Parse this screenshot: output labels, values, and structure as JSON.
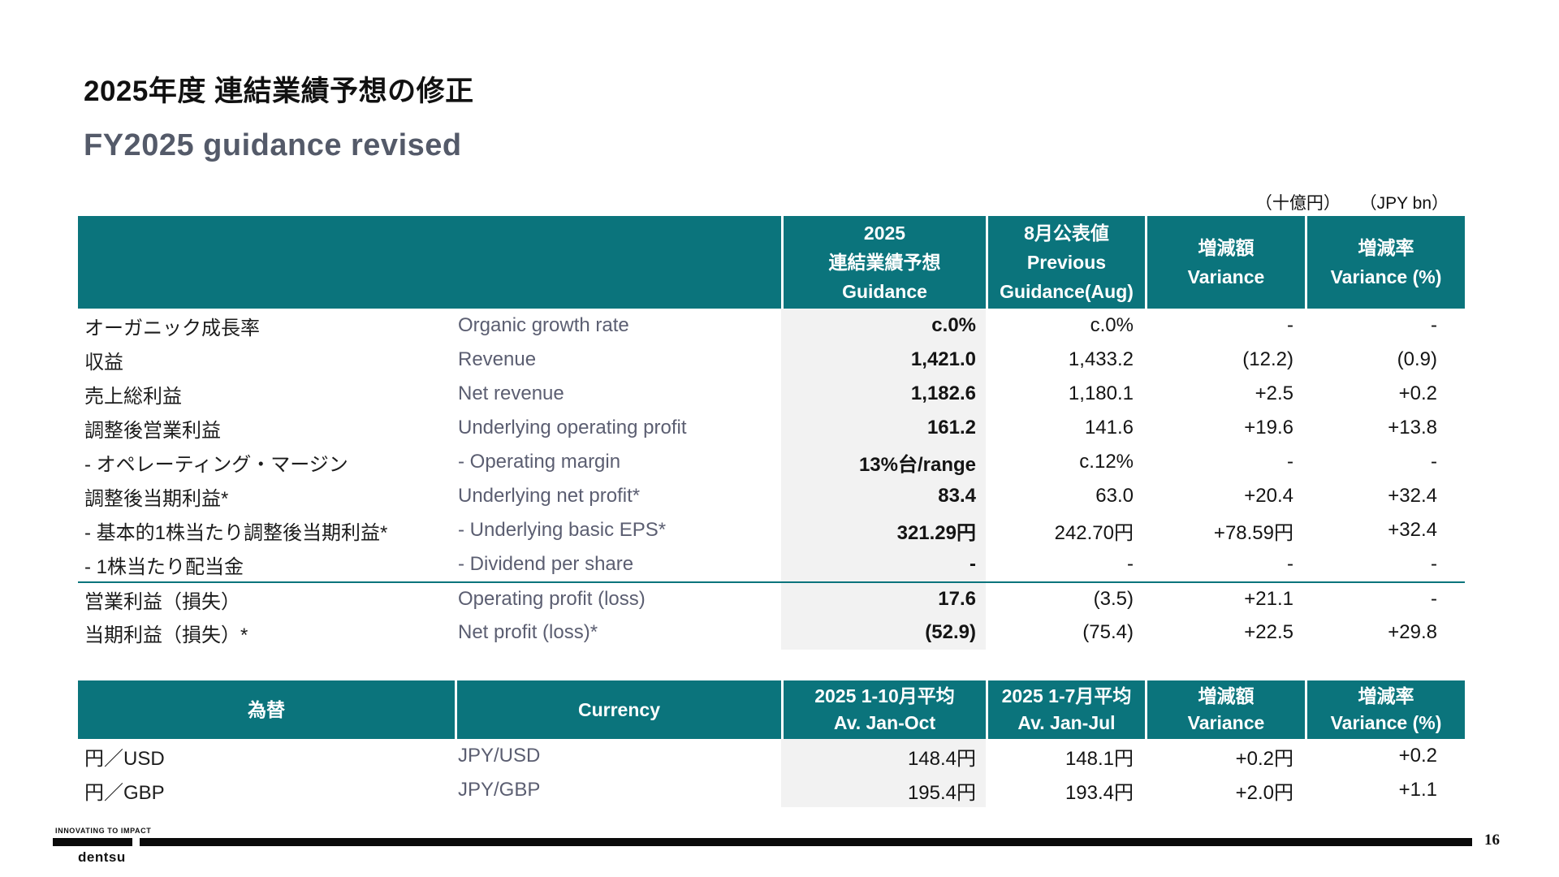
{
  "slide": {
    "title_jp": "2025年度 連結業績予想の修正",
    "title_en": "FY2025 guidance revised",
    "unit_note_jp": "（十億円）",
    "unit_note_en": "（JPY bn）"
  },
  "colors": {
    "teal": "#0B747C",
    "guidance_column_bg": "#F2F2F2",
    "english_label": "#5B5E71",
    "subtitle": "#545A69"
  },
  "guidance_table": {
    "header": {
      "guidance_lines": [
        "2025",
        "連結業績予想",
        "Guidance"
      ],
      "previous_lines": [
        "8月公表値",
        "Previous",
        "Guidance(Aug)"
      ],
      "variance_lines": [
        "増減額",
        "Variance"
      ],
      "variance_pct_lines": [
        "増減率",
        "Variance (%)"
      ]
    },
    "rows": [
      {
        "jp": "オーガニック成長率",
        "en": "Organic growth rate",
        "guidance": "c.0%",
        "previous": "c.0%",
        "variance": "-",
        "variance_pct": "-"
      },
      {
        "jp": "収益",
        "en": "Revenue",
        "guidance": "1,421.0",
        "previous": "1,433.2",
        "variance": "(12.2)",
        "variance_pct": "(0.9)"
      },
      {
        "jp": "売上総利益",
        "en": "Net revenue",
        "guidance": "1,182.6",
        "previous": "1,180.1",
        "variance": "+2.5",
        "variance_pct": "+0.2"
      },
      {
        "jp": "調整後営業利益",
        "en": "Underlying operating profit",
        "guidance": "161.2",
        "previous": "141.6",
        "variance": "+19.6",
        "variance_pct": "+13.8"
      },
      {
        "jp": "- オペレーティング・マージン",
        "en": "- Operating margin",
        "guidance": "13%台/range",
        "previous": "c.12%",
        "variance": "-",
        "variance_pct": "-"
      },
      {
        "jp": "調整後当期利益*",
        "en": "Underlying net profit*",
        "guidance": "83.4",
        "previous": "63.0",
        "variance": "+20.4",
        "variance_pct": "+32.4"
      },
      {
        "jp": "- 基本的1株当たり調整後当期利益*",
        "en": "- Underlying basic EPS*",
        "guidance": "321.29円",
        "previous": "242.70円",
        "variance": "+78.59円",
        "variance_pct": "+32.4"
      },
      {
        "jp": "- 1株当たり配当金",
        "en": "- Dividend per share",
        "guidance": "-",
        "previous": "-",
        "variance": "-",
        "variance_pct": "-"
      },
      {
        "jp": "営業利益（損失）",
        "en": "Operating profit (loss)",
        "guidance": "17.6",
        "previous": "(3.5)",
        "variance": "+21.1",
        "variance_pct": "-"
      },
      {
        "jp": "当期利益（損失）*",
        "en": "Net profit (loss)*",
        "guidance": "(52.9)",
        "previous": "(75.4)",
        "variance": "+22.5",
        "variance_pct": "+29.8"
      }
    ]
  },
  "currency_table": {
    "header": {
      "jp_label": "為替",
      "en_label": "Currency",
      "current_lines": [
        "2025 1-10月平均",
        "Av. Jan-Oct"
      ],
      "previous_lines": [
        "2025 1-7月平均",
        "Av. Jan-Jul"
      ],
      "variance_lines": [
        "増減額",
        "Variance"
      ],
      "variance_pct_lines": [
        "増減率",
        "Variance (%)"
      ]
    },
    "rows": [
      {
        "jp": "円／USD",
        "en": "JPY/USD",
        "current": "148.4円",
        "previous": "148.1円",
        "variance": "+0.2円",
        "variance_pct": "+0.2"
      },
      {
        "jp": "円／GBP",
        "en": "JPY/GBP",
        "current": "195.4円",
        "previous": "193.4円",
        "variance": "+2.0円",
        "variance_pct": "+1.1"
      }
    ]
  },
  "footer": {
    "tagline": "INNOVATING TO IMPACT",
    "logo": "dentsu",
    "page_number": "16"
  }
}
